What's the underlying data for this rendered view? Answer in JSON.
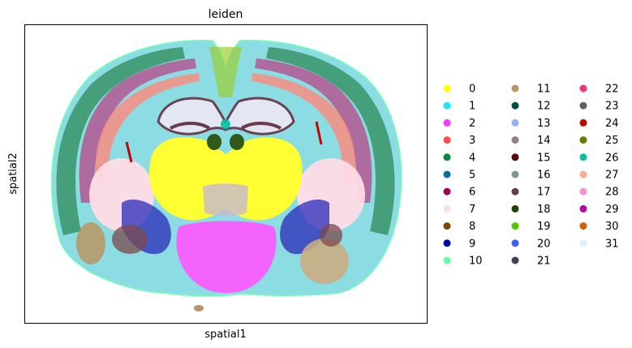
{
  "chart_data": {
    "type": "scatter",
    "title": "leiden",
    "xlabel": "spatial1",
    "ylabel": "spatial2",
    "grid": false,
    "ticks": false,
    "legend_placement": "right",
    "legend_columns": 3,
    "legend": [
      {
        "label": "0",
        "color": "#ffff00"
      },
      {
        "label": "1",
        "color": "#1ce6ff"
      },
      {
        "label": "2",
        "color": "#ff34ff"
      },
      {
        "label": "3",
        "color": "#ff4a46"
      },
      {
        "label": "4",
        "color": "#008941"
      },
      {
        "label": "5",
        "color": "#006fa6"
      },
      {
        "label": "6",
        "color": "#a30059"
      },
      {
        "label": "7",
        "color": "#ffdbe5"
      },
      {
        "label": "8",
        "color": "#7a4900"
      },
      {
        "label": "9",
        "color": "#0000a6"
      },
      {
        "label": "10",
        "color": "#63ffac"
      },
      {
        "label": "11",
        "color": "#b79762"
      },
      {
        "label": "12",
        "color": "#004d43"
      },
      {
        "label": "13",
        "color": "#8fb0ff"
      },
      {
        "label": "14",
        "color": "#997d87"
      },
      {
        "label": "15",
        "color": "#5a0007"
      },
      {
        "label": "16",
        "color": "#809693"
      },
      {
        "label": "17",
        "color": "#6a3a4c"
      },
      {
        "label": "18",
        "color": "#1b4400"
      },
      {
        "label": "19",
        "color": "#4fc601"
      },
      {
        "label": "20",
        "color": "#3b5dff"
      },
      {
        "label": "21",
        "color": "#4a3b53"
      },
      {
        "label": "22",
        "color": "#ff2f80"
      },
      {
        "label": "23",
        "color": "#61615a"
      },
      {
        "label": "24",
        "color": "#ba0900"
      },
      {
        "label": "25",
        "color": "#6b7900"
      },
      {
        "label": "26",
        "color": "#00c2a0"
      },
      {
        "label": "27",
        "color": "#ffaa92"
      },
      {
        "label": "28",
        "color": "#ff90c9"
      },
      {
        "label": "29",
        "color": "#b903aa"
      },
      {
        "label": "30",
        "color": "#d16100"
      },
      {
        "label": "31",
        "color": "#ddefff"
      }
    ]
  }
}
